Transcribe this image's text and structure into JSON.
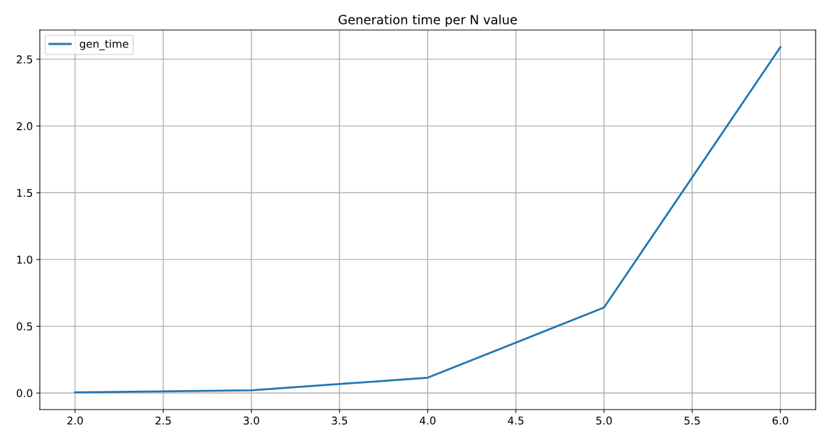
{
  "chart_data": {
    "type": "line",
    "title": "Generation time per N value",
    "x": [
      2,
      3,
      4,
      5,
      6
    ],
    "series": [
      {
        "name": "gen_time",
        "color": "#1f77b4",
        "values": [
          0.005,
          0.02,
          0.115,
          0.64,
          2.59
        ]
      }
    ],
    "xlim": [
      1.8,
      6.2
    ],
    "xticks": [
      {
        "value": 2,
        "label": "2.0"
      },
      {
        "value": 2.5,
        "label": "2.5"
      },
      {
        "value": 3,
        "label": "3.0"
      },
      {
        "value": 3.5,
        "label": "3.5"
      },
      {
        "value": 4,
        "label": "4.0"
      },
      {
        "value": 4.5,
        "label": "4.5"
      },
      {
        "value": 5,
        "label": "5.0"
      },
      {
        "value": 5.5,
        "label": "5.5"
      },
      {
        "value": 6,
        "label": "6.0"
      }
    ],
    "ylim": [
      -0.124,
      2.719
    ],
    "yticks": [
      {
        "value": 0,
        "label": "0.0"
      },
      {
        "value": 0.5,
        "label": "0.5"
      },
      {
        "value": 1,
        "label": "1.0"
      },
      {
        "value": 1.5,
        "label": "1.5"
      },
      {
        "value": 2,
        "label": "2.0"
      },
      {
        "value": 2.5,
        "label": "2.5"
      }
    ],
    "grid": true,
    "legend": "top left"
  }
}
